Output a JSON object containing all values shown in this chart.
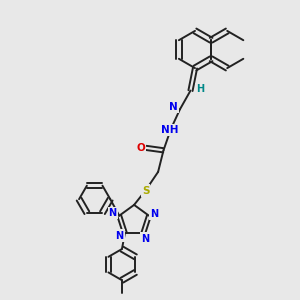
{
  "bg_color": "#e8e8e8",
  "bond_color": "#222222",
  "bond_width": 1.4,
  "atom_colors": {
    "N": "#0000ee",
    "O": "#dd0000",
    "S": "#aaaa00",
    "H": "#008888"
  },
  "font_size": 7.5
}
